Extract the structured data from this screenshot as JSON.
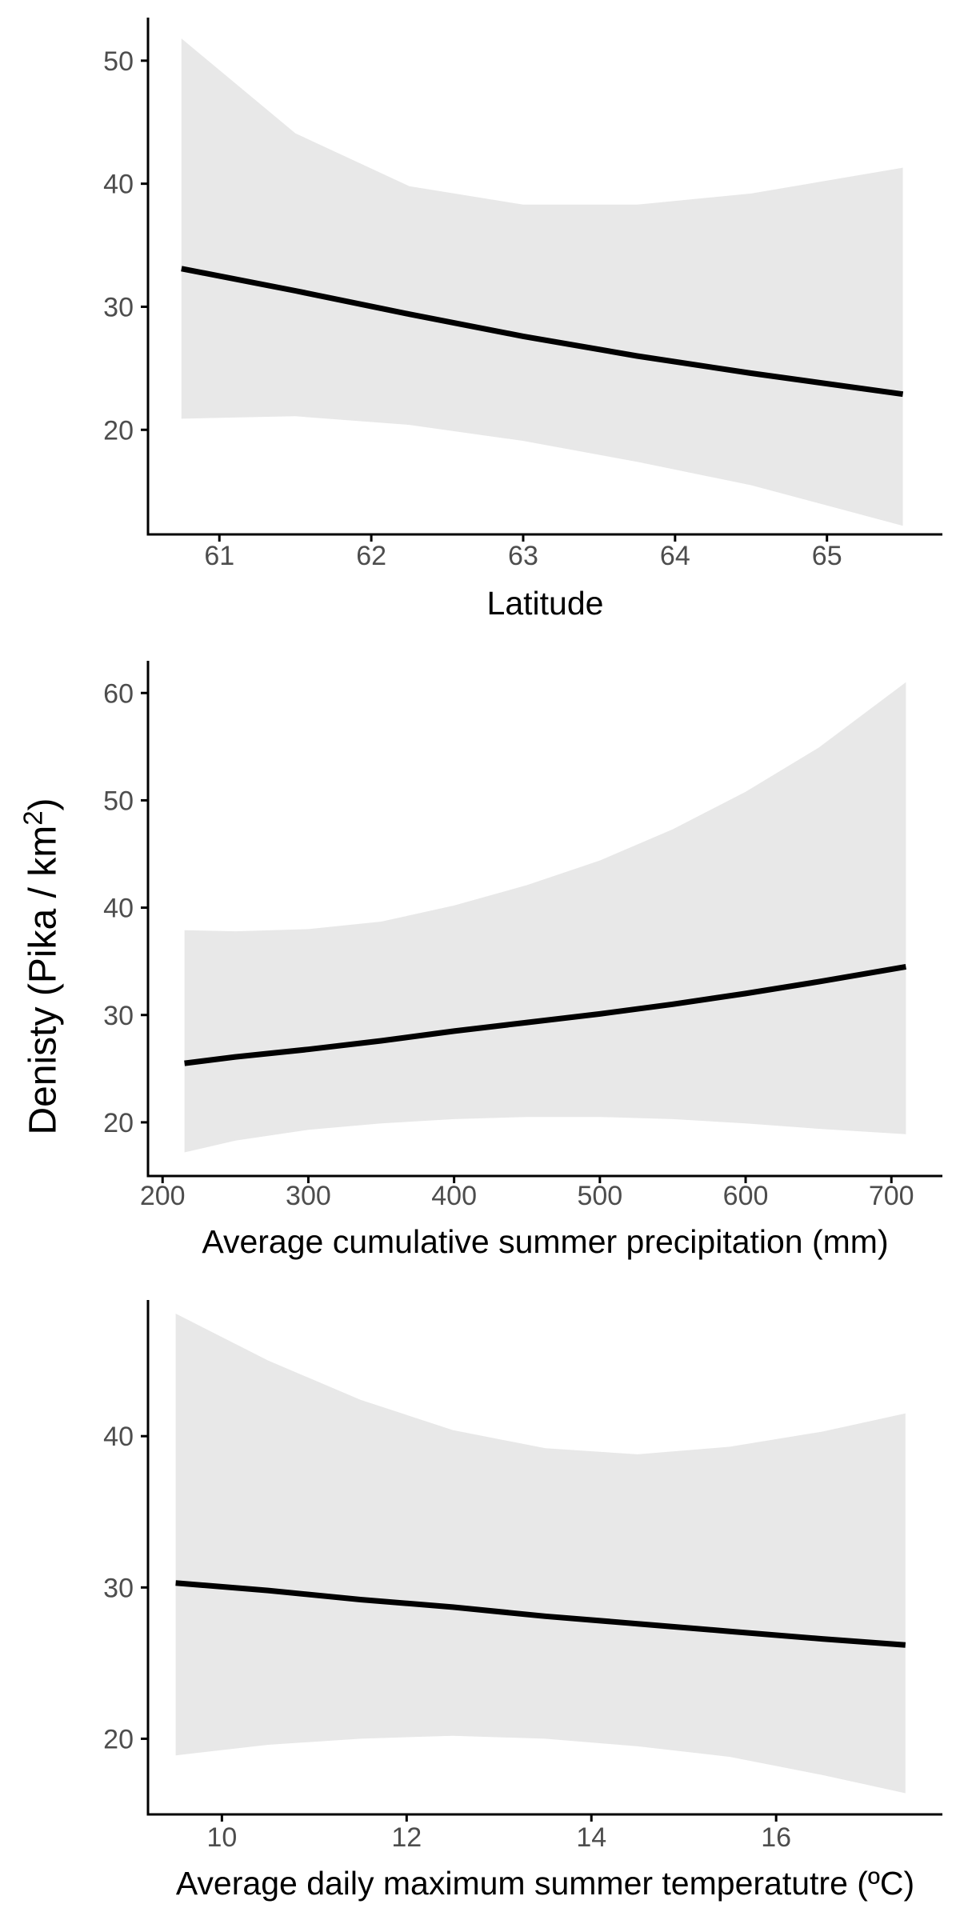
{
  "figure": {
    "ylabel_prefix": "Denisty (Pika / km",
    "ylabel_sup": "2",
    "ylabel_suffix": ")",
    "band_color": "#e8e8e8",
    "line_color": "#000000",
    "axis_color": "#000000",
    "tick_label_color": "#4d4d4d"
  },
  "chart_data": [
    {
      "type": "line",
      "xlabel": "Latitude",
      "xlim": [
        60.53,
        65.76
      ],
      "ylim": [
        11.5,
        53.5
      ],
      "xticks": [
        61,
        62,
        63,
        64,
        65
      ],
      "yticks": [
        20,
        30,
        40,
        50
      ],
      "series": [
        {
          "x": [
            60.75,
            61.5,
            62.25,
            63.0,
            63.75,
            64.5,
            65.5
          ],
          "y": [
            33.1,
            31.3,
            29.4,
            27.6,
            26.0,
            24.6,
            22.9
          ],
          "lower": [
            20.9,
            21.1,
            20.4,
            19.1,
            17.4,
            15.5,
            12.2
          ],
          "upper": [
            51.8,
            44.1,
            39.8,
            38.3,
            38.3,
            39.2,
            41.3
          ]
        }
      ]
    },
    {
      "type": "line",
      "xlabel": "Average cumulative summer precipitation (mm)",
      "xlim": [
        190,
        735
      ],
      "ylim": [
        15,
        63
      ],
      "xticks": [
        200,
        300,
        400,
        500,
        600,
        700
      ],
      "yticks": [
        20,
        30,
        40,
        50,
        60
      ],
      "series": [
        {
          "x": [
            215,
            250,
            300,
            350,
            400,
            450,
            500,
            550,
            600,
            650,
            710
          ],
          "y": [
            25.5,
            26.1,
            26.8,
            27.6,
            28.5,
            29.3,
            30.1,
            31.0,
            32.0,
            33.1,
            34.5
          ],
          "lower": [
            17.2,
            18.3,
            19.3,
            19.9,
            20.3,
            20.5,
            20.5,
            20.3,
            19.9,
            19.4,
            18.9
          ],
          "upper": [
            37.9,
            37.8,
            38.0,
            38.7,
            40.2,
            42.1,
            44.4,
            47.3,
            50.8,
            54.9,
            61.0
          ]
        }
      ]
    },
    {
      "type": "line",
      "xlabel": "Average daily maximum summer temperatutre (ºC)",
      "xlim": [
        9.2,
        17.8
      ],
      "ylim": [
        15,
        49
      ],
      "xticks": [
        10,
        12,
        14,
        16
      ],
      "yticks": [
        20,
        30,
        40
      ],
      "series": [
        {
          "x": [
            9.5,
            10.5,
            11.5,
            12.5,
            13.5,
            14.5,
            15.5,
            16.5,
            17.4
          ],
          "y": [
            30.3,
            29.8,
            29.2,
            28.7,
            28.1,
            27.6,
            27.1,
            26.6,
            26.2
          ],
          "lower": [
            18.9,
            19.6,
            20.0,
            20.2,
            20.0,
            19.5,
            18.8,
            17.6,
            16.4
          ],
          "upper": [
            48.1,
            45.0,
            42.4,
            40.4,
            39.2,
            38.8,
            39.3,
            40.3,
            41.5
          ]
        }
      ]
    }
  ]
}
